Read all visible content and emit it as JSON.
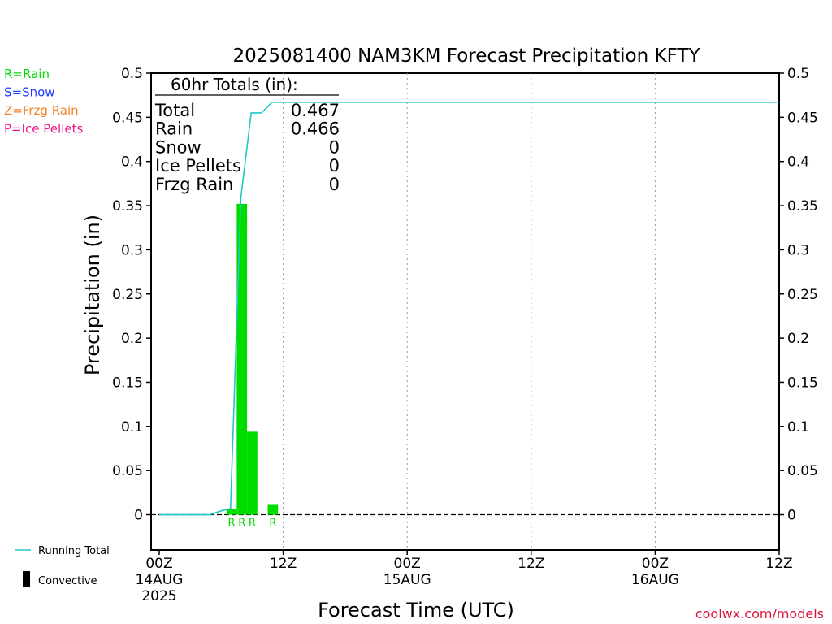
{
  "chart_data": {
    "type": "bar",
    "title": "2025081400 NAM3KM Forecast Precipitation KFTY",
    "xlabel": "Forecast Time (UTC)",
    "ylabel": "Precipitation (in)",
    "ylim": [
      -0.04,
      0.5
    ],
    "xlim_hours": [
      0,
      60
    ],
    "yticks": [
      "0.5",
      "0.45",
      "0.4",
      "0.35",
      "0.3",
      "0.25",
      "0.2",
      "0.15",
      "0.1",
      "0.05",
      "0"
    ],
    "ytick_values": [
      0.5,
      0.45,
      0.4,
      0.35,
      0.3,
      0.25,
      0.2,
      0.15,
      0.1,
      0.05,
      0
    ],
    "xticks": [
      {
        "hour": 0,
        "time": "00Z",
        "date": "14AUG",
        "year": "2025"
      },
      {
        "hour": 12,
        "time": "12Z",
        "date": "",
        "year": ""
      },
      {
        "hour": 24,
        "time": "00Z",
        "date": "15AUG",
        "year": ""
      },
      {
        "hour": 36,
        "time": "12Z",
        "date": "",
        "year": ""
      },
      {
        "hour": 48,
        "time": "00Z",
        "date": "16AUG",
        "year": ""
      },
      {
        "hour": 60,
        "time": "12Z",
        "date": "",
        "year": ""
      }
    ],
    "grid": "vertical dotted at 12-hour ticks",
    "bars": [
      {
        "hour": 6,
        "value": 0.007,
        "ptype": "R"
      },
      {
        "hour": 7,
        "value": 0.352,
        "ptype": "R"
      },
      {
        "hour": 8,
        "value": 0.094,
        "ptype": "R"
      },
      {
        "hour": 10,
        "value": 0.012,
        "ptype": "R"
      }
    ],
    "series": [
      {
        "name": "Running Total",
        "x": [
          0,
          1,
          2,
          3,
          4,
          5,
          6,
          7,
          8,
          9,
          10,
          11,
          12,
          60
        ],
        "values": [
          0,
          0,
          0,
          0,
          0,
          0.004,
          0.007,
          0.359,
          0.455,
          0.455,
          0.467,
          0.467,
          0.467,
          0.467
        ]
      }
    ],
    "totals": {
      "header": "60hr Totals (in):",
      "rows": [
        {
          "label": "Total",
          "value": "0.467"
        },
        {
          "label": "Rain",
          "value": "0.466"
        },
        {
          "label": "Snow",
          "value": "0"
        },
        {
          "label": "Ice Pellets",
          "value": "0"
        },
        {
          "label": "Frzg Rain",
          "value": "0"
        }
      ]
    },
    "ptype_legend": [
      {
        "label": "R=Rain",
        "color": "#00dc00"
      },
      {
        "label": "S=Snow",
        "color": "#1e3cff"
      },
      {
        "label": "Z=Frzg Rain",
        "color": "#f08228"
      },
      {
        "label": "P=Ice Pellets",
        "color": "#f0148c"
      }
    ],
    "series_legend": [
      {
        "label": "Running Total",
        "color": "#1fc8c8"
      },
      {
        "label": "Convective",
        "color": "#000000"
      }
    ],
    "credit": "coolwx.com/models",
    "colors": {
      "rain": "#00dc00",
      "running_total": "#1fc8c8",
      "credit": "#dc143c",
      "axis": "#000000"
    }
  }
}
